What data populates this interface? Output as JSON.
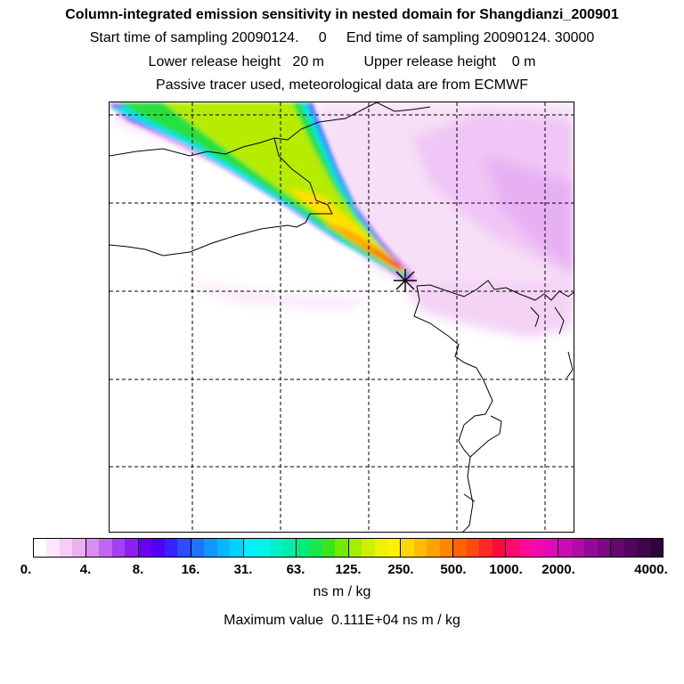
{
  "header": {
    "title": "Column-integrated emission sensitivity in nested domain for Shangdianzi_200901",
    "sampling_line": "Start time of sampling 20090124.     0     End time of sampling 20090124. 30000",
    "release_line": "Lower release height   20 m          Upper release height    0 m",
    "tracer_line": "Passive tracer used, meteorological data are from ECMWF"
  },
  "map": {
    "station_marker": "station-cross-icon",
    "plume_colors": [
      "#ffffff",
      "#f6d0f6",
      "#b04cf2",
      "#2a5cff",
      "#00e0e6",
      "#30e030",
      "#d8e800",
      "#ffd000",
      "#ff9a00",
      "#ff3030"
    ]
  },
  "colorbar": {
    "segments": [
      {
        "colors": [
          "#ffffff",
          "#fbe6fb",
          "#f5cdf5",
          "#eab0f0"
        ]
      },
      {
        "colors": [
          "#d88ef0",
          "#c166f2",
          "#a63ef2",
          "#8e1ef2"
        ]
      },
      {
        "colors": [
          "#6c00f2",
          "#5000f6",
          "#3a22ff",
          "#2b4cff"
        ]
      },
      {
        "colors": [
          "#1e74ff",
          "#1296ff",
          "#08b6ff",
          "#00d2ff"
        ]
      },
      {
        "colors": [
          "#00f0ff",
          "#00f4e8",
          "#00f0c8",
          "#00eeaa"
        ]
      },
      {
        "colors": [
          "#00ec80",
          "#18e84e",
          "#3ae61a",
          "#72ea00"
        ]
      },
      {
        "colors": [
          "#a4ee00",
          "#ccf000",
          "#ecf200",
          "#fff000"
        ]
      },
      {
        "colors": [
          "#ffd800",
          "#ffbe00",
          "#ffa200",
          "#ff8400"
        ]
      },
      {
        "colors": [
          "#ff6400",
          "#ff4a10",
          "#ff2828",
          "#ff0a3a"
        ]
      },
      {
        "colors": [
          "#ff0a6e",
          "#ff0a96",
          "#f20aae",
          "#e00ab8"
        ]
      },
      {
        "colors": [
          "#cc0ab4",
          "#b20aa8",
          "#96089a",
          "#7c0884"
        ]
      },
      {
        "colors": [
          "#660670",
          "#52045e",
          "#40044c",
          "#30033a"
        ]
      }
    ],
    "ticks": [
      "0.",
      "4.",
      "8.",
      "16.",
      "31.",
      "63.",
      "125.",
      "250.",
      "500.",
      "1000.",
      "2000.",
      "4000."
    ],
    "units": "ns m / kg",
    "maximum": "Maximum value  0.111E+04 ns m / kg"
  }
}
